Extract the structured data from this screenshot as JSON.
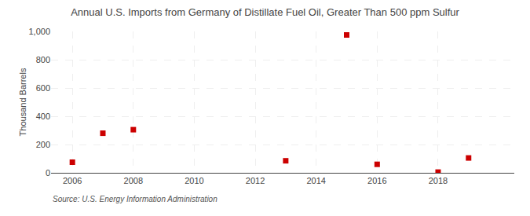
{
  "chart_data": {
    "type": "scatter",
    "title": "Annual U.S. Imports from Germany of Distillate Fuel Oil, Greater Than 500 ppm Sulfur",
    "ylabel": "Thousand Barrels",
    "source": "Source: U.S. Energy Information Administration",
    "x": [
      2006,
      2007,
      2008,
      2013,
      2015,
      2016,
      2018,
      2019
    ],
    "values": [
      75,
      280,
      305,
      85,
      975,
      60,
      5,
      105
    ],
    "color": "#cc0000",
    "marker": "square",
    "xlim": [
      2005.3,
      2020.5
    ],
    "xticks": [
      2006,
      2008,
      2010,
      2012,
      2014,
      2016,
      2018
    ],
    "ylim": [
      0,
      1000
    ],
    "yticks": [
      0,
      200,
      400,
      600,
      800,
      {
        "value": 1000,
        "label": "1,000"
      }
    ],
    "grid": true
  }
}
